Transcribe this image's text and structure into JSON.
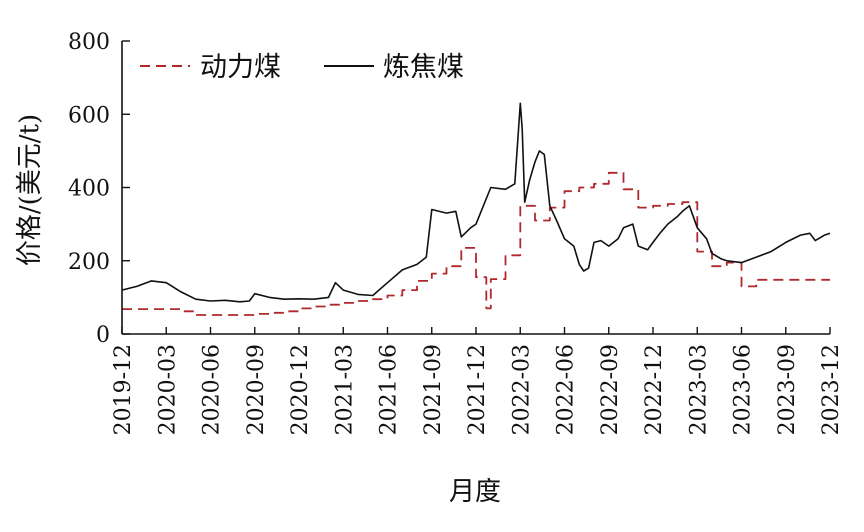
{
  "chart_data": {
    "type": "line",
    "xlabel": "月度",
    "ylabel": "价格/(美元/t)",
    "ylim": [
      0,
      800
    ],
    "yticks": [
      0,
      200,
      400,
      600,
      800
    ],
    "xlim": [
      "2019-12",
      "2023-12"
    ],
    "xticks": [
      "2019-12",
      "2020-03",
      "2020-06",
      "2020-09",
      "2020-12",
      "2021-03",
      "2021-06",
      "2021-09",
      "2021-12",
      "2022-03",
      "2022-06",
      "2022-09",
      "2022-12",
      "2023-03",
      "2023-06",
      "2023-09",
      "2023-12"
    ],
    "legend_position": "top-left",
    "grid": false,
    "series": [
      {
        "name": "动力煤",
        "style": "dashed",
        "color": "#b0282c",
        "step": true,
        "x": [
          "2019-12",
          "2020-03",
          "2020-04",
          "2020-05",
          "2020-09",
          "2020-10",
          "2020-11",
          "2020-12",
          "2021-01",
          "2021-02",
          "2021-03",
          "2021-04",
          "2021-05",
          "2021-06",
          "2021-07",
          "2021-08",
          "2021-09",
          "2021-10",
          "2021-11",
          "2021-12",
          "2021-12-22",
          "2022-01",
          "2022-02",
          "2022-03",
          "2022-04",
          "2022-05",
          "2022-06",
          "2022-07",
          "2022-08",
          "2022-09",
          "2022-10",
          "2022-11",
          "2022-12",
          "2023-01",
          "2023-02",
          "2023-03",
          "2023-04",
          "2023-05",
          "2023-06",
          "2023-07",
          "2023-12"
        ],
        "values": [
          68,
          68,
          62,
          52,
          55,
          58,
          62,
          70,
          75,
          80,
          85,
          90,
          95,
          105,
          120,
          145,
          165,
          185,
          235,
          155,
          70,
          150,
          215,
          350,
          310,
          345,
          390,
          400,
          410,
          440,
          395,
          345,
          350,
          355,
          360,
          225,
          185,
          195,
          130,
          148,
          148
        ]
      },
      {
        "name": "炼焦煤",
        "style": "solid",
        "color": "#111111",
        "x": [
          "2019-12",
          "2020-01",
          "2020-02",
          "2020-03",
          "2020-04",
          "2020-05",
          "2020-06",
          "2020-07",
          "2020-08",
          "2020-08-20",
          "2020-09",
          "2020-10",
          "2020-11",
          "2020-12",
          "2021-01",
          "2021-02",
          "2021-02-15",
          "2021-03",
          "2021-04",
          "2021-05",
          "2021-06",
          "2021-07",
          "2021-08",
          "2021-08-20",
          "2021-09",
          "2021-10",
          "2021-10-20",
          "2021-11",
          "2021-11-20",
          "2021-12",
          "2022-01",
          "2022-02",
          "2022-02-20",
          "2022-03",
          "2022-03-05",
          "2022-03-10",
          "2022-03-20",
          "2022-04",
          "2022-04-10",
          "2022-04-20",
          "2022-05",
          "2022-05-15",
          "2022-06",
          "2022-06-20",
          "2022-07",
          "2022-07-10",
          "2022-07-20",
          "2022-08",
          "2022-08-15",
          "2022-09",
          "2022-09-20",
          "2022-10",
          "2022-10-20",
          "2022-11",
          "2022-11-20",
          "2022-12",
          "2022-12-15",
          "2023-01",
          "2023-01-20",
          "2023-02",
          "2023-02-15",
          "2023-03",
          "2023-03-20",
          "2023-04",
          "2023-04-20",
          "2023-05",
          "2023-06",
          "2023-07",
          "2023-08",
          "2023-09",
          "2023-10",
          "2023-10-20",
          "2023-11",
          "2023-11-20",
          "2023-12"
        ],
        "values": [
          120,
          130,
          145,
          140,
          115,
          95,
          90,
          92,
          88,
          90,
          110,
          100,
          95,
          96,
          95,
          100,
          140,
          120,
          108,
          105,
          140,
          175,
          190,
          210,
          340,
          330,
          335,
          265,
          290,
          300,
          400,
          395,
          410,
          630,
          560,
          360,
          420,
          470,
          500,
          490,
          350,
          310,
          260,
          240,
          190,
          172,
          180,
          250,
          255,
          240,
          260,
          290,
          300,
          240,
          230,
          250,
          275,
          300,
          320,
          335,
          350,
          290,
          260,
          220,
          205,
          200,
          195,
          210,
          225,
          250,
          270,
          275,
          255,
          270,
          275
        ]
      }
    ]
  }
}
